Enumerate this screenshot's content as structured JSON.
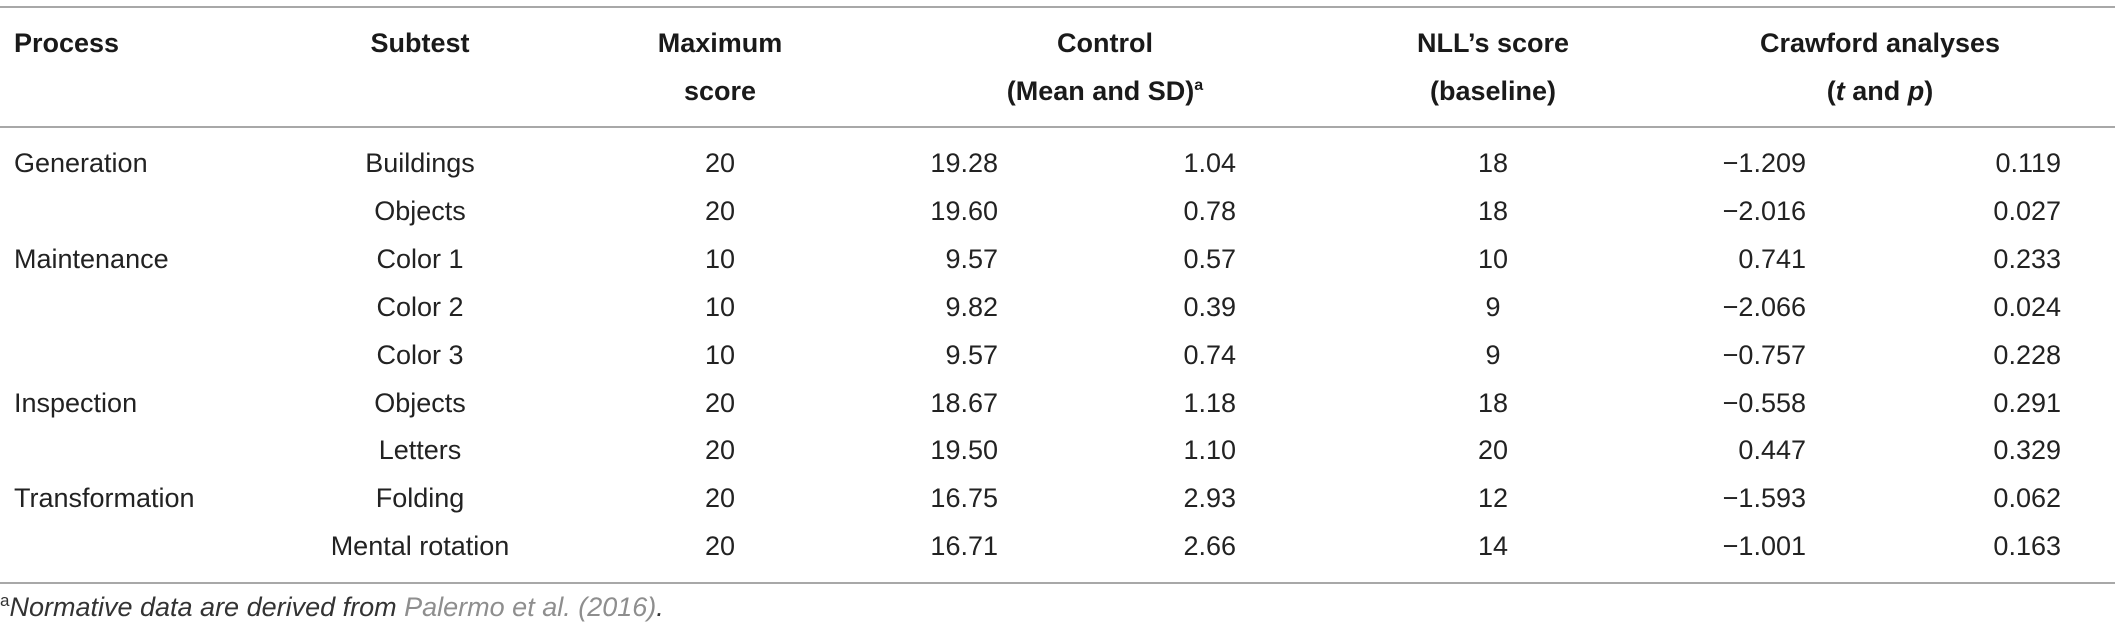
{
  "header": {
    "process": "Process",
    "subtest": "Subtest",
    "maximum_line1": "Maximum",
    "maximum_line2": "score",
    "control_line1": "Control",
    "control_line2": "(Mean and SD)",
    "control_sup": "a",
    "nll_line1": "NLL’s score",
    "nll_line2": "(baseline)",
    "crawford_line1": "Crawford analyses",
    "crawford_open": "(",
    "crawford_t": "t",
    "crawford_and": " and ",
    "crawford_p": "p",
    "crawford_close": ")"
  },
  "rows": [
    {
      "process": "Generation",
      "subtest": "Buildings",
      "max": "20",
      "mean": "19.28",
      "sd": "1.04",
      "nll": "18",
      "t": "−1.209",
      "p": "0.119"
    },
    {
      "process": "",
      "subtest": "Objects",
      "max": "20",
      "mean": "19.60",
      "sd": "0.78",
      "nll": "18",
      "t": "−2.016",
      "p": "0.027"
    },
    {
      "process": "Maintenance",
      "subtest": "Color 1",
      "max": "10",
      "mean": "9.57",
      "sd": "0.57",
      "nll": "10",
      "t": "0.741",
      "p": "0.233"
    },
    {
      "process": "",
      "subtest": "Color 2",
      "max": "10",
      "mean": "9.82",
      "sd": "0.39",
      "nll": "9",
      "t": "−2.066",
      "p": "0.024"
    },
    {
      "process": "",
      "subtest": "Color 3",
      "max": "10",
      "mean": "9.57",
      "sd": "0.74",
      "nll": "9",
      "t": "−0.757",
      "p": "0.228"
    },
    {
      "process": "Inspection",
      "subtest": "Objects",
      "max": "20",
      "mean": "18.67",
      "sd": "1.18",
      "nll": "18",
      "t": "−0.558",
      "p": "0.291"
    },
    {
      "process": "",
      "subtest": "Letters",
      "max": "20",
      "mean": "19.50",
      "sd": "1.10",
      "nll": "20",
      "t": "0.447",
      "p": "0.329"
    },
    {
      "process": "Transformation",
      "subtest": "Folding",
      "max": "20",
      "mean": "16.75",
      "sd": "2.93",
      "nll": "12",
      "t": "−1.593",
      "p": "0.062"
    },
    {
      "process": "",
      "subtest": "Mental rotation",
      "max": "20",
      "mean": "16.71",
      "sd": "2.66",
      "nll": "14",
      "t": "−1.001",
      "p": "0.163"
    }
  ],
  "footnote": {
    "marker": "a",
    "text": "Normative data are derived from ",
    "citation": "Palermo et al. (2016)",
    "end": "."
  }
}
